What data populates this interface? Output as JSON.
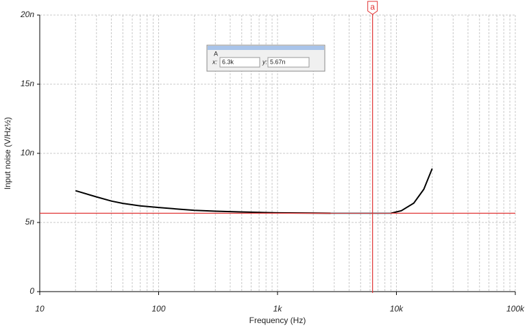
{
  "chart_data": {
    "type": "line",
    "x_label": "Frequency (Hz)",
    "y_label": "Input noise (V/Hz½)",
    "log_x": true,
    "grid": true,
    "minor_x_grid": true,
    "xlim": [
      10,
      100000
    ],
    "xticks": [
      10,
      100,
      {
        "value": 1000,
        "label": "1k"
      },
      {
        "value": 10000,
        "label": "10k"
      },
      {
        "value": 100000,
        "label": "100k"
      }
    ],
    "ylim": [
      0,
      20
    ],
    "yticks": [
      0,
      {
        "value": 5,
        "label": "5n"
      },
      {
        "value": 10,
        "label": "10n"
      },
      {
        "value": 15,
        "label": "15n"
      },
      {
        "value": 20,
        "label": "20n"
      }
    ],
    "x": [
      20,
      30,
      40,
      50,
      70,
      100,
      150,
      200,
      300,
      500,
      700,
      1000,
      2000,
      2800,
      4000,
      6300,
      9000,
      11000,
      14000,
      17000,
      20000
    ],
    "series": [
      {
        "color": "#000000",
        "values": [
          7.3,
          6.85,
          6.55,
          6.38,
          6.2,
          6.08,
          5.96,
          5.88,
          5.82,
          5.76,
          5.73,
          5.7,
          5.68,
          5.67,
          null,
          null,
          5.67,
          5.85,
          6.4,
          7.4,
          8.9
        ]
      },
      {
        "color": "#2a9fb0",
        "values": [
          null,
          null,
          null,
          null,
          null,
          null,
          null,
          null,
          null,
          null,
          null,
          null,
          null,
          5.67,
          5.67,
          5.67,
          5.67,
          null,
          null,
          null,
          null
        ]
      }
    ],
    "cursor": {
      "label": "a",
      "color": "#e03030",
      "x": 6300,
      "y": 5.67,
      "readout": {
        "title": "A",
        "x_label": "x:",
        "x_value": "6.3k",
        "y_label": "y:",
        "y_value": "5.67n"
      }
    }
  }
}
